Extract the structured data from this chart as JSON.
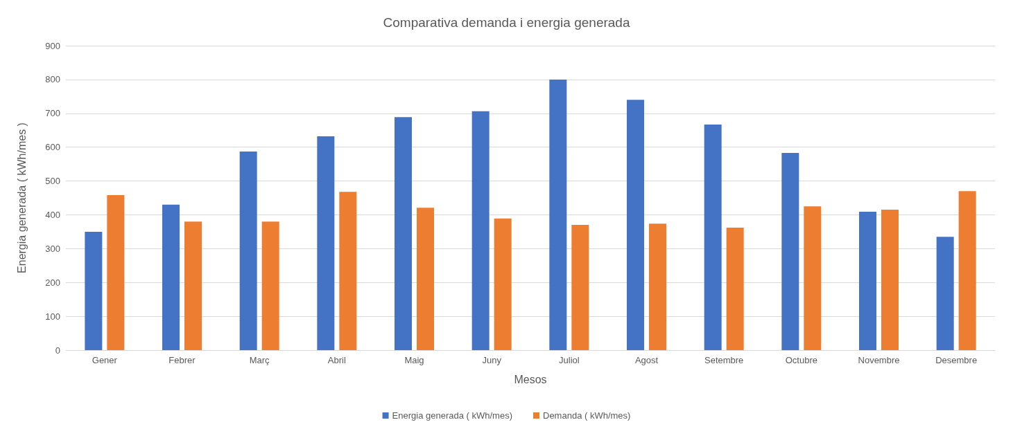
{
  "chart_data": {
    "type": "bar",
    "title": "Comparativa demanda i energia generada",
    "xlabel": "Mesos",
    "ylabel": "Energia generada ( kWh/mes )",
    "categories": [
      "Gener",
      "Febrer",
      "Març",
      "Abril",
      "Maig",
      "Juny",
      "Juliol",
      "Agost",
      "Setembre",
      "Octubre",
      "Novembre",
      "Desembre"
    ],
    "series": [
      {
        "name": "Energia generada ( kWh/mes)",
        "color": "#4472c4",
        "values": [
          350,
          430,
          587,
          632,
          689,
          706,
          800,
          740,
          667,
          583,
          409,
          335
        ]
      },
      {
        "name": "Demanda ( kWh/mes)",
        "color": "#ed7d31",
        "values": [
          458,
          380,
          380,
          468,
          421,
          389,
          370,
          374,
          362,
          425,
          415,
          470
        ]
      }
    ],
    "ylim": [
      0,
      900
    ],
    "yticks": [
      0,
      100,
      200,
      300,
      400,
      500,
      600,
      700,
      800,
      900
    ],
    "grid": "y",
    "legend": "bottom"
  }
}
